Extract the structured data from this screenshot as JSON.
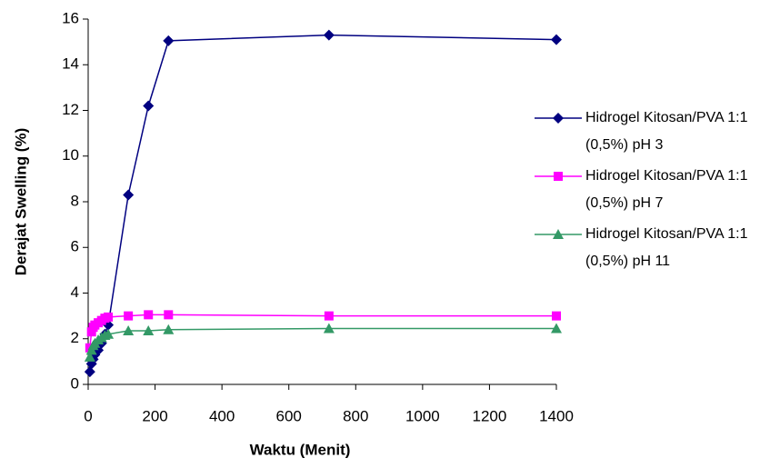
{
  "chart_data": {
    "type": "line",
    "x_label": "Waktu (Menit)",
    "y_label": "Derajat Swelling (%)",
    "x": [
      5,
      10,
      15,
      20,
      30,
      40,
      50,
      60,
      120,
      180,
      240,
      720,
      1400
    ],
    "series": [
      {
        "name": "Hidrogel Kitosan/PVA 1:1 (0,5%) pH 3",
        "color": "#000080",
        "marker": "diamond",
        "values": [
          0.55,
          0.9,
          1.1,
          1.3,
          1.5,
          1.8,
          2.2,
          2.6,
          8.3,
          12.2,
          15.05,
          15.3,
          15.1
        ]
      },
      {
        "name": "Hidrogel Kitosan/PVA 1:1 (0,5%) pH 7",
        "color": "#ff00ff",
        "marker": "square",
        "values": [
          1.6,
          2.3,
          2.5,
          2.6,
          2.7,
          2.8,
          2.9,
          2.95,
          3.0,
          3.05,
          3.05,
          3.0,
          3.0
        ]
      },
      {
        "name": "Hidrogel Kitosan/PVA 1:1 (0,5%) pH 11",
        "color": "#339966",
        "marker": "triangle",
        "values": [
          1.2,
          1.5,
          1.7,
          1.8,
          1.95,
          2.05,
          2.15,
          2.2,
          2.35,
          2.35,
          2.4,
          2.45,
          2.45
        ]
      }
    ],
    "xlim": [
      0,
      1400
    ],
    "xticks": [
      0,
      200,
      400,
      600,
      800,
      1000,
      1200,
      1400
    ],
    "ylim": [
      0,
      16
    ],
    "yticks": [
      0,
      2,
      4,
      6,
      8,
      10,
      12,
      14,
      16
    ],
    "legend": "right"
  }
}
